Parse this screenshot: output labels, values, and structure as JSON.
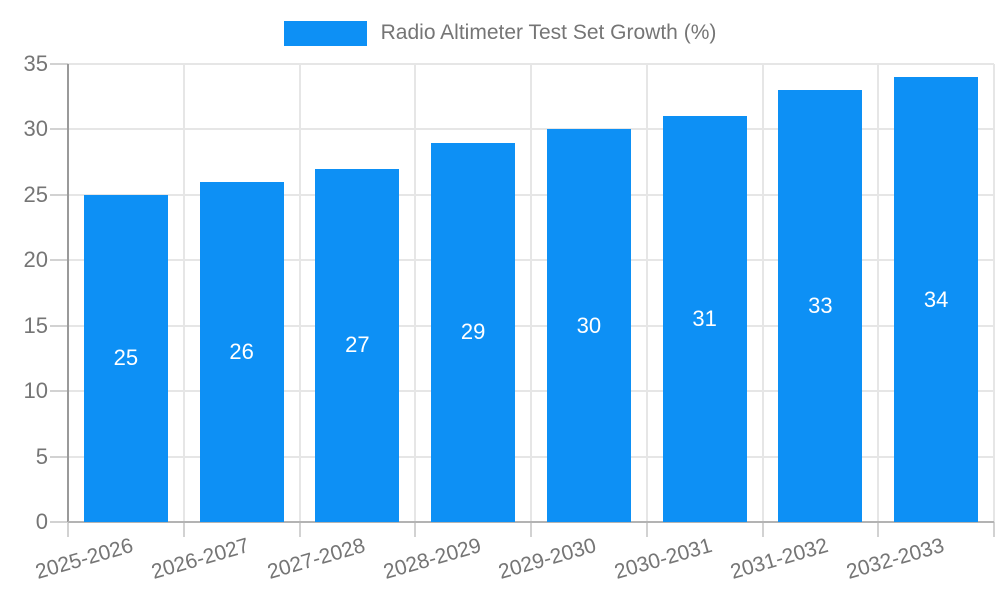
{
  "chart_data": {
    "type": "bar",
    "title": "Radio Altimeter Test Set Growth (%)",
    "categories": [
      "2025-2026",
      "2026-2027",
      "2027-2028",
      "2028-2029",
      "2029-2030",
      "2030-2031",
      "2031-2032",
      "2032-2033"
    ],
    "values": [
      25,
      26,
      27,
      29,
      30,
      31,
      33,
      34
    ],
    "xlabel": "",
    "ylabel": "",
    "ylim": [
      0,
      35
    ],
    "yticks": [
      0,
      5,
      10,
      15,
      20,
      25,
      30,
      35
    ],
    "grid": "both",
    "legend_position": "top-center",
    "bar_color": "#0d90f5",
    "value_label_color": "#ffffff",
    "text_color": "#757575",
    "grid_color": "#e6e6e6",
    "axis_color": "#9a9a9a"
  }
}
